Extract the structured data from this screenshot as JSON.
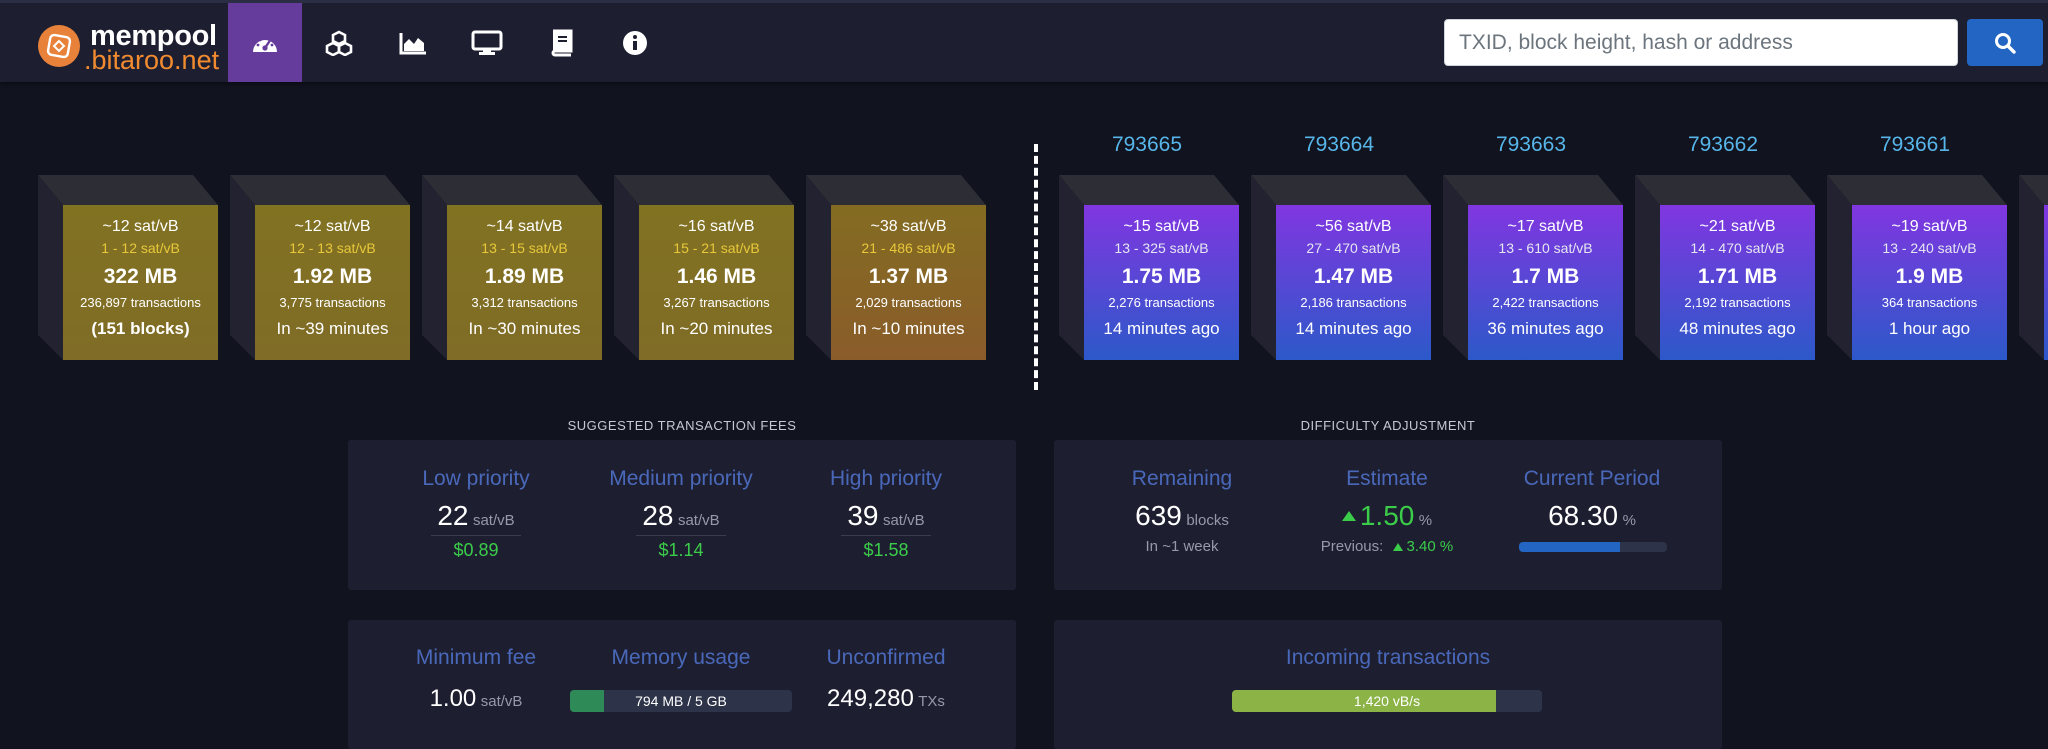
{
  "brand": {
    "name": "mempool",
    "sub": ".bitaroo.net"
  },
  "nav": {
    "items": [
      {
        "icon": "dashboard-icon",
        "active": true
      },
      {
        "icon": "cubes-icon",
        "active": false
      },
      {
        "icon": "chart-area-icon",
        "active": false
      },
      {
        "icon": "monitor-icon",
        "active": false
      },
      {
        "icon": "book-icon",
        "active": false
      },
      {
        "icon": "info-icon",
        "active": false
      }
    ]
  },
  "search": {
    "placeholder": "TXID, block height, hash or address",
    "icon": "search-icon"
  },
  "mempool_blocks": [
    {
      "fee": "~12 sat/vB",
      "range": "1 - 12 sat/vB",
      "size": "322 MB",
      "tx": "236,897 transactions",
      "time": "(151 blocks)"
    },
    {
      "fee": "~12 sat/vB",
      "range": "12 - 13 sat/vB",
      "size": "1.92 MB",
      "tx": "3,775 transactions",
      "time": "In ~39 minutes"
    },
    {
      "fee": "~14 sat/vB",
      "range": "13 - 15 sat/vB",
      "size": "1.89 MB",
      "tx": "3,312 transactions",
      "time": "In ~30 minutes"
    },
    {
      "fee": "~16 sat/vB",
      "range": "15 - 21 sat/vB",
      "size": "1.46 MB",
      "tx": "3,267 transactions",
      "time": "In ~20 minutes"
    },
    {
      "fee": "~38 sat/vB",
      "range": "21 - 486 sat/vB",
      "size": "1.37 MB",
      "tx": "2,029 transactions",
      "time": "In ~10 minutes"
    }
  ],
  "mined_blocks": [
    {
      "height": "793665",
      "fee": "~15 sat/vB",
      "range": "13 - 325 sat/vB",
      "size": "1.75 MB",
      "tx": "2,276 transactions",
      "time": "14 minutes ago"
    },
    {
      "height": "793664",
      "fee": "~56 sat/vB",
      "range": "27 - 470 sat/vB",
      "size": "1.47 MB",
      "tx": "2,186 transactions",
      "time": "14 minutes ago"
    },
    {
      "height": "793663",
      "fee": "~17 sat/vB",
      "range": "13 - 610 sat/vB",
      "size": "1.7 MB",
      "tx": "2,422 transactions",
      "time": "36 minutes ago"
    },
    {
      "height": "793662",
      "fee": "~21 sat/vB",
      "range": "14 - 470 sat/vB",
      "size": "1.71 MB",
      "tx": "2,192 transactions",
      "time": "48 minutes ago"
    },
    {
      "height": "793661",
      "fee": "~19 sat/vB",
      "range": "13 - 240 sat/vB",
      "size": "1.9 MB",
      "tx": "364 transactions",
      "time": "1 hour ago"
    }
  ],
  "fees": {
    "title": "SUGGESTED TRANSACTION FEES",
    "unit": "sat/vB",
    "items": [
      {
        "label": "Low priority",
        "value": "22",
        "usd": "$0.89"
      },
      {
        "label": "Medium priority",
        "value": "28",
        "usd": "$1.14"
      },
      {
        "label": "High priority",
        "value": "39",
        "usd": "$1.58"
      }
    ]
  },
  "difficulty": {
    "title": "DIFFICULTY ADJUSTMENT",
    "remaining": {
      "label": "Remaining",
      "value": "639",
      "unit": "blocks",
      "sub": "In ~1 week"
    },
    "estimate": {
      "label": "Estimate",
      "value": "1.50",
      "unit": "%",
      "prev_label": "Previous:",
      "prev_value": "3.40",
      "prev_unit": "%"
    },
    "current": {
      "label": "Current Period",
      "value": "68.30",
      "unit": "%",
      "progress": 0.683
    }
  },
  "stats": {
    "min_fee": {
      "label": "Minimum fee",
      "value": "1.00",
      "unit": "sat/vB"
    },
    "memory": {
      "label": "Memory usage",
      "text": "794 MB / 5 GB",
      "progress": 0.155
    },
    "unconfirmed": {
      "label": "Unconfirmed",
      "value": "249,280",
      "unit": "TXs"
    }
  },
  "incoming": {
    "label": "Incoming transactions",
    "text": "1,420 vB/s",
    "progress": 0.85
  },
  "colors": {
    "accent": "#653b9c",
    "link": "#57b5e9",
    "green": "#3bcc49",
    "label": "#4a68b9"
  }
}
